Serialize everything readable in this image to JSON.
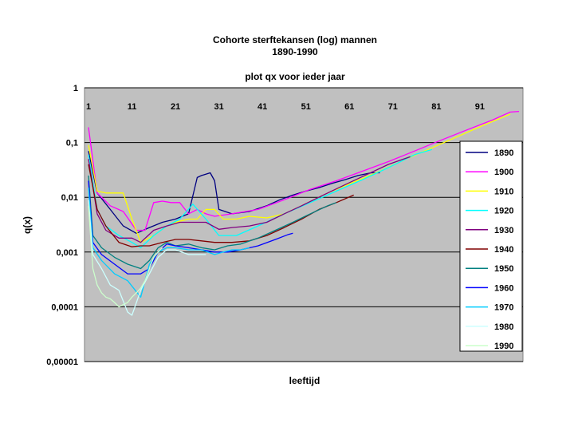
{
  "chart_data": {
    "type": "line",
    "title": "Cohorte sterftekansen (log) mannen",
    "title_line2": "1890-1990",
    "subtitle": "plot qx voor ieder jaar",
    "xlabel": "leeftijd",
    "ylabel": "q(x)",
    "y_scale": "log",
    "ylim": [
      1e-05,
      1
    ],
    "xlim": [
      1,
      100
    ],
    "y_ticks": [
      "1",
      "0,1",
      "0,01",
      "0,001",
      "0,0001",
      "0,00001"
    ],
    "x_ticks": [
      "1",
      "11",
      "21",
      "31",
      "41",
      "51",
      "61",
      "71",
      "81",
      "91"
    ],
    "x_tick_values": [
      1,
      11,
      21,
      31,
      41,
      51,
      61,
      71,
      81,
      91
    ],
    "grid": true,
    "legend_position": "right",
    "background_color": "#c0c0c0",
    "series": [
      {
        "name": "1890",
        "color": "#000080",
        "x": [
          1,
          3,
          6,
          9,
          12,
          15,
          18,
          21,
          24,
          26,
          27,
          29,
          30,
          31,
          34,
          38,
          42,
          45,
          48,
          51,
          54,
          57,
          60,
          63,
          66,
          68
        ],
        "y": [
          0.07,
          0.012,
          0.006,
          0.003,
          0.0022,
          0.0028,
          0.0035,
          0.004,
          0.005,
          0.023,
          0.025,
          0.028,
          0.02,
          0.006,
          0.005,
          0.0055,
          0.007,
          0.009,
          0.011,
          0.013,
          0.015,
          0.018,
          0.021,
          0.025,
          0.028,
          0.028
        ]
      },
      {
        "name": "1900",
        "color": "#ff00ff",
        "x": [
          1,
          3,
          6,
          9,
          12,
          14,
          16,
          18,
          20,
          22,
          24,
          26,
          28,
          30,
          34,
          40,
          46,
          52,
          58,
          64,
          70,
          76,
          82,
          88,
          94,
          98,
          100
        ],
        "y": [
          0.19,
          0.012,
          0.007,
          0.0055,
          0.0025,
          0.0025,
          0.008,
          0.0085,
          0.008,
          0.008,
          0.005,
          0.006,
          0.005,
          0.0045,
          0.005,
          0.006,
          0.009,
          0.014,
          0.02,
          0.03,
          0.045,
          0.07,
          0.11,
          0.17,
          0.26,
          0.36,
          0.37
        ]
      },
      {
        "name": "1910",
        "color": "#ffff00",
        "x": [
          1,
          3,
          5,
          7,
          9,
          11,
          13,
          16,
          19,
          21,
          24,
          26,
          28,
          30,
          32,
          35,
          38,
          42,
          46,
          50,
          56,
          62,
          68,
          74,
          80,
          86,
          92,
          98
        ],
        "y": [
          0.09,
          0.013,
          0.012,
          0.012,
          0.012,
          0.004,
          0.0015,
          0.002,
          0.003,
          0.0035,
          0.004,
          0.004,
          0.006,
          0.006,
          0.004,
          0.004,
          0.0045,
          0.0042,
          0.005,
          0.007,
          0.012,
          0.019,
          0.03,
          0.05,
          0.08,
          0.13,
          0.21,
          0.33
        ]
      },
      {
        "name": "1920",
        "color": "#00ffff",
        "x": [
          1,
          3,
          5,
          8,
          11,
          13,
          16,
          19,
          22,
          25,
          28,
          31,
          35,
          40,
          46,
          52,
          58,
          64,
          70,
          76,
          80
        ],
        "y": [
          0.06,
          0.006,
          0.003,
          0.002,
          0.0015,
          0.0012,
          0.002,
          0.003,
          0.004,
          0.0075,
          0.004,
          0.002,
          0.002,
          0.003,
          0.005,
          0.008,
          0.013,
          0.021,
          0.035,
          0.06,
          0.075
        ]
      },
      {
        "name": "1930",
        "color": "#800080",
        "x": [
          1,
          3,
          5,
          8,
          11,
          13,
          16,
          19,
          22,
          25,
          28,
          31,
          34,
          38,
          42,
          46,
          50,
          55,
          60,
          65,
          70,
          75
        ],
        "y": [
          0.05,
          0.005,
          0.0025,
          0.0018,
          0.0018,
          0.0015,
          0.0025,
          0.003,
          0.0035,
          0.0035,
          0.0035,
          0.0026,
          0.0028,
          0.003,
          0.0035,
          0.005,
          0.007,
          0.011,
          0.017,
          0.026,
          0.04,
          0.055
        ]
      },
      {
        "name": "1940",
        "color": "#800000",
        "x": [
          1,
          3,
          5,
          8,
          11,
          13,
          15,
          18,
          21,
          24,
          27,
          30,
          34,
          38,
          42,
          46,
          50,
          54,
          58,
          62
        ],
        "y": [
          0.04,
          0.006,
          0.003,
          0.0015,
          0.00125,
          0.0013,
          0.0013,
          0.0015,
          0.0017,
          0.0017,
          0.0016,
          0.0015,
          0.0015,
          0.0016,
          0.002,
          0.0028,
          0.004,
          0.006,
          0.008,
          0.011
        ]
      },
      {
        "name": "1950",
        "color": "#008080",
        "x": [
          1,
          2,
          4,
          7,
          10,
          13,
          15,
          17,
          19,
          21,
          24,
          27,
          30,
          33,
          36,
          40,
          44,
          48,
          52,
          56,
          58
        ],
        "y": [
          0.025,
          0.002,
          0.0012,
          0.0008,
          0.0006,
          0.0005,
          0.0007,
          0.0012,
          0.0015,
          0.0013,
          0.0014,
          0.0012,
          0.0011,
          0.0013,
          0.0014,
          0.0018,
          0.0025,
          0.0035,
          0.005,
          0.007,
          0.008
        ]
      },
      {
        "name": "1960",
        "color": "#0000ff",
        "x": [
          1,
          2,
          4,
          7,
          10,
          13,
          15,
          17,
          19,
          21,
          24,
          27,
          30,
          33,
          36,
          40,
          44,
          47,
          48
        ],
        "y": [
          0.02,
          0.0015,
          0.0009,
          0.0006,
          0.0004,
          0.0004,
          0.0005,
          0.001,
          0.0014,
          0.0013,
          0.0012,
          0.0011,
          0.001,
          0.001,
          0.0011,
          0.0013,
          0.0017,
          0.0021,
          0.0022
        ]
      },
      {
        "name": "1970",
        "color": "#00ccff",
        "x": [
          1,
          2,
          4,
          7,
          10,
          13,
          15,
          17,
          19,
          21,
          24,
          27,
          30,
          32,
          34,
          36,
          38
        ],
        "y": [
          0.015,
          0.0012,
          0.0007,
          0.0004,
          0.0003,
          0.00015,
          0.0006,
          0.001,
          0.0012,
          0.0012,
          0.0011,
          0.0011,
          0.0009,
          0.001,
          0.0011,
          0.0011,
          0.0012
        ]
      },
      {
        "name": "1980",
        "color": "#ccffff",
        "x": [
          1,
          2,
          4,
          6,
          8,
          10,
          11,
          13,
          15,
          17,
          19,
          21,
          24,
          27,
          28
        ],
        "y": [
          0.009,
          0.0009,
          0.0005,
          0.00025,
          0.0002,
          8e-05,
          7e-05,
          0.0002,
          0.0004,
          0.0008,
          0.0011,
          0.0011,
          0.0009,
          0.0009,
          0.0009
        ]
      },
      {
        "name": "1990",
        "color": "#ccffcc",
        "x": [
          1,
          2,
          3,
          4,
          5,
          6,
          7,
          8,
          9,
          10,
          11,
          12,
          13,
          14,
          15,
          16,
          17,
          18
        ],
        "y": [
          0.007,
          0.0005,
          0.00025,
          0.00018,
          0.00015,
          0.00014,
          0.00012,
          0.0001,
          0.00011,
          0.00012,
          0.00015,
          0.00018,
          0.00022,
          0.0003,
          0.0005,
          0.0008,
          0.001,
          0.0012
        ]
      }
    ]
  }
}
